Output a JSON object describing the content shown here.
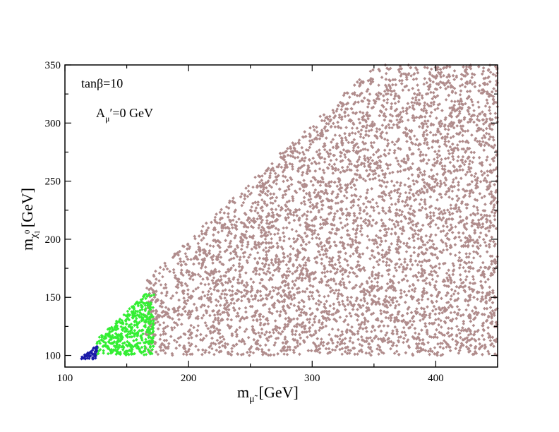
{
  "chart_data": {
    "type": "scatter",
    "title": "",
    "xlabel": {
      "base": "m",
      "sub": "μ̃",
      "unit": "[GeV]"
    },
    "ylabel": {
      "base": "m",
      "sub": "χ",
      "sub_sup": "0",
      "sub_sub": "1",
      "unit": "[GeV]"
    },
    "xlim": [
      100,
      450
    ],
    "ylim": [
      90,
      350
    ],
    "x_major_ticks": [
      100,
      200,
      300,
      400
    ],
    "y_major_ticks": [
      100,
      150,
      200,
      250,
      300,
      350
    ],
    "x_minor_step": 50,
    "y_minor_step": 25,
    "grid": false,
    "legend": "none",
    "annotations": [
      {
        "id": "tanbeta",
        "text": "tanβ=10"
      },
      {
        "id": "amu",
        "base": "A",
        "sub": "μ",
        "rest": "′=0 GeV"
      }
    ],
    "series": [
      {
        "id": "brown",
        "color": "#b08c8c",
        "region": {
          "x_range": [
            165,
            450
          ],
          "y_min": 100,
          "y_max_rule": "y <= x",
          "y_cap": 350
        },
        "approx_point_count": 9000
      },
      {
        "id": "green",
        "color": "#33ee33",
        "region": {
          "x_range": [
            125,
            172
          ],
          "y_min": 100,
          "y_max_rule": "y <= x - 12",
          "y_cap": 153
        },
        "approx_point_count": 450
      },
      {
        "id": "blue",
        "color": "#1a1aa8",
        "region": {
          "x_range": [
            113,
            126
          ],
          "y_min": 97,
          "y_max_rule": "y <= x - 15",
          "y_cap": 110
        },
        "approx_point_count": 45
      }
    ]
  }
}
